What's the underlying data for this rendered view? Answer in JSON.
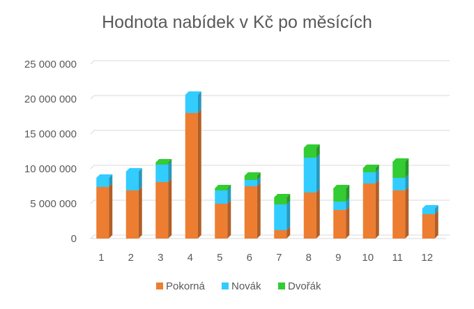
{
  "chart_data": {
    "type": "bar",
    "stacked": true,
    "three_d": true,
    "title": "Hodnota nabídek v Kč po měsících",
    "xlabel": "",
    "ylabel": "",
    "categories": [
      "1",
      "2",
      "3",
      "4",
      "5",
      "6",
      "7",
      "8",
      "9",
      "10",
      "11",
      "12"
    ],
    "ylim": [
      0,
      25000000
    ],
    "yticks": [
      0,
      5000000,
      10000000,
      15000000,
      20000000,
      25000000
    ],
    "ytick_labels": [
      "0",
      "5 000 000",
      "10 000 000",
      "15 000 000",
      "20 000 000",
      "25 000 000"
    ],
    "grid": true,
    "legend_position": "bottom",
    "series": [
      {
        "name": "Pokorná",
        "color": "#ED7D31",
        "values": [
          7400000,
          6900000,
          8100000,
          18000000,
          5000000,
          7500000,
          1200000,
          6600000,
          4100000,
          7900000,
          6900000,
          3500000
        ]
      },
      {
        "name": "Novák",
        "color": "#33CCFF",
        "values": [
          1300000,
          2700000,
          2500000,
          2600000,
          1900000,
          900000,
          3700000,
          5000000,
          1200000,
          1600000,
          1800000,
          800000
        ]
      },
      {
        "name": "Dvořák",
        "color": "#33CC33",
        "values": [
          0,
          0,
          300000,
          0,
          300000,
          600000,
          1000000,
          1400000,
          1900000,
          600000,
          2300000,
          0
        ]
      }
    ]
  }
}
